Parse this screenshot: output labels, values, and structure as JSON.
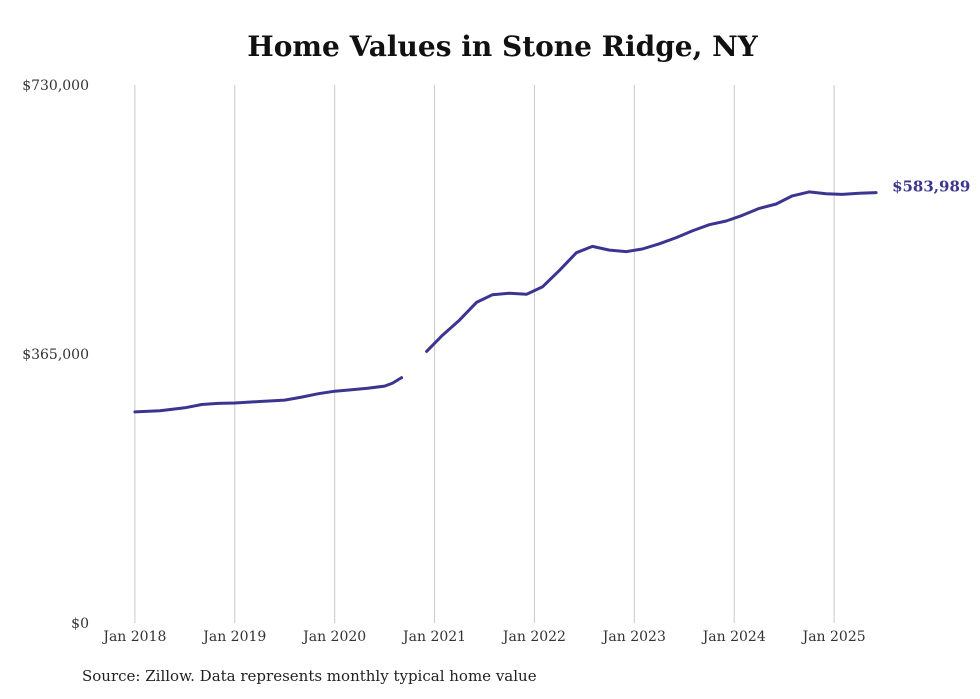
{
  "chart_data": {
    "type": "line",
    "title": "Home Values in Stone Ridge, NY",
    "xlabel": "",
    "ylabel": "",
    "ylim": [
      0,
      730000
    ],
    "y_ticks": [
      {
        "value": 0,
        "label": "$0"
      },
      {
        "value": 365000,
        "label": "$365,000"
      },
      {
        "value": 730000,
        "label": "$730,000"
      }
    ],
    "x_ticks": [
      {
        "value": 2018.0,
        "label": "Jan 2018"
      },
      {
        "value": 2019.0,
        "label": "Jan 2019"
      },
      {
        "value": 2020.0,
        "label": "Jan 2020"
      },
      {
        "value": 2021.0,
        "label": "Jan 2021"
      },
      {
        "value": 2022.0,
        "label": "Jan 2022"
      },
      {
        "value": 2023.0,
        "label": "Jan 2023"
      },
      {
        "value": 2024.0,
        "label": "Jan 2024"
      },
      {
        "value": 2025.0,
        "label": "Jan 2025"
      }
    ],
    "xlim": [
      2017.0,
      2026.0
    ],
    "grid": "vertical",
    "line_color": "#3b3591",
    "series": [
      {
        "segments": [
          [
            [
              2018.0,
              286500
            ],
            [
              2018.25,
              288000
            ],
            [
              2018.5,
              292000
            ],
            [
              2018.67,
              296500
            ],
            [
              2018.83,
              298000
            ],
            [
              2019.0,
              298500
            ],
            [
              2019.25,
              300500
            ],
            [
              2019.5,
              302500
            ],
            [
              2019.67,
              306500
            ],
            [
              2019.83,
              311000
            ],
            [
              2020.0,
              314500
            ],
            [
              2020.17,
              316500
            ],
            [
              2020.33,
              318500
            ],
            [
              2020.5,
              321500
            ],
            [
              2020.58,
              325500
            ],
            [
              2020.67,
              333000
            ]
          ],
          [
            [
              2020.92,
              368500
            ],
            [
              2021.08,
              390500
            ],
            [
              2021.25,
              411000
            ],
            [
              2021.42,
              435000
            ],
            [
              2021.58,
              445500
            ],
            [
              2021.75,
              447500
            ],
            [
              2021.92,
              446000
            ],
            [
              2022.08,
              456000
            ],
            [
              2022.25,
              478500
            ],
            [
              2022.42,
              502500
            ],
            [
              2022.58,
              511000
            ],
            [
              2022.75,
              506000
            ],
            [
              2022.92,
              504000
            ],
            [
              2023.08,
              507500
            ],
            [
              2023.25,
              514500
            ],
            [
              2023.42,
              523000
            ],
            [
              2023.58,
              532000
            ],
            [
              2023.75,
              540500
            ],
            [
              2023.92,
              545500
            ],
            [
              2024.08,
              553000
            ],
            [
              2024.25,
              562500
            ],
            [
              2024.42,
              568500
            ],
            [
              2024.58,
              579500
            ],
            [
              2024.75,
              585000
            ],
            [
              2024.92,
              582500
            ],
            [
              2025.08,
              581500
            ],
            [
              2025.25,
              583000
            ],
            [
              2025.42,
              583989
            ]
          ]
        ]
      }
    ],
    "end_label": "$583,989"
  },
  "source_note": "Source: Zillow. Data represents monthly typical home value"
}
